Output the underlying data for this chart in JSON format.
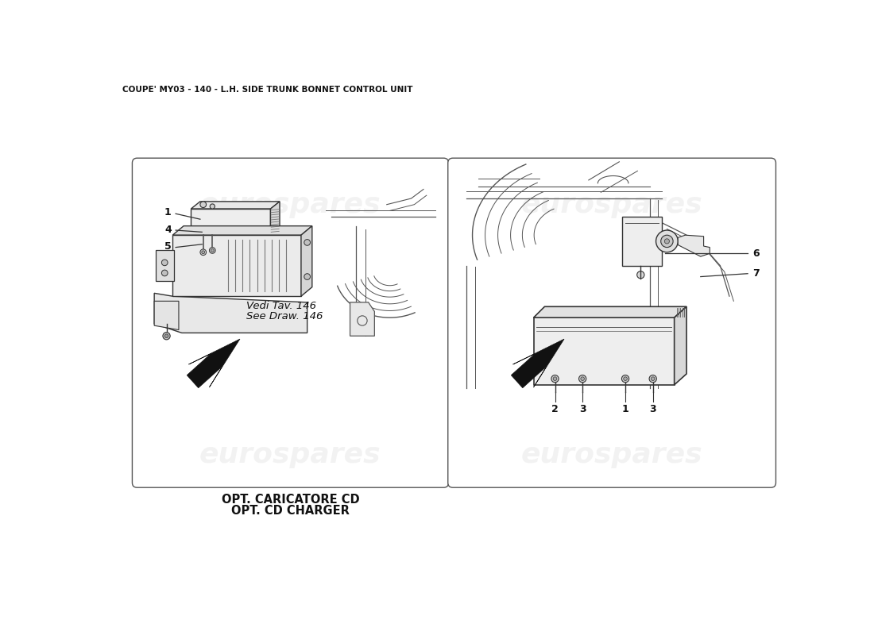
{
  "title": "COUPE' MY03 - 140 - L.H. SIDE TRUNK BONNET CONTROL UNIT",
  "bg_color": "#ffffff",
  "panel_face": "#ffffff",
  "panel_edge": "#555555",
  "line_color": "#333333",
  "line_color2": "#555555",
  "watermark_text": "eurospares",
  "watermark_color": "#cccccc",
  "left_label_line1": "OPT. CARICATORE CD",
  "left_label_line2": "OPT. CD CHARGER",
  "ref_text_it": "Vedi Tav. 146",
  "ref_text_en": "See Draw. 146",
  "title_fontsize": 7.5,
  "label_fontsize": 10.5,
  "part_fontsize": 9,
  "watermark_fontsize": 26
}
